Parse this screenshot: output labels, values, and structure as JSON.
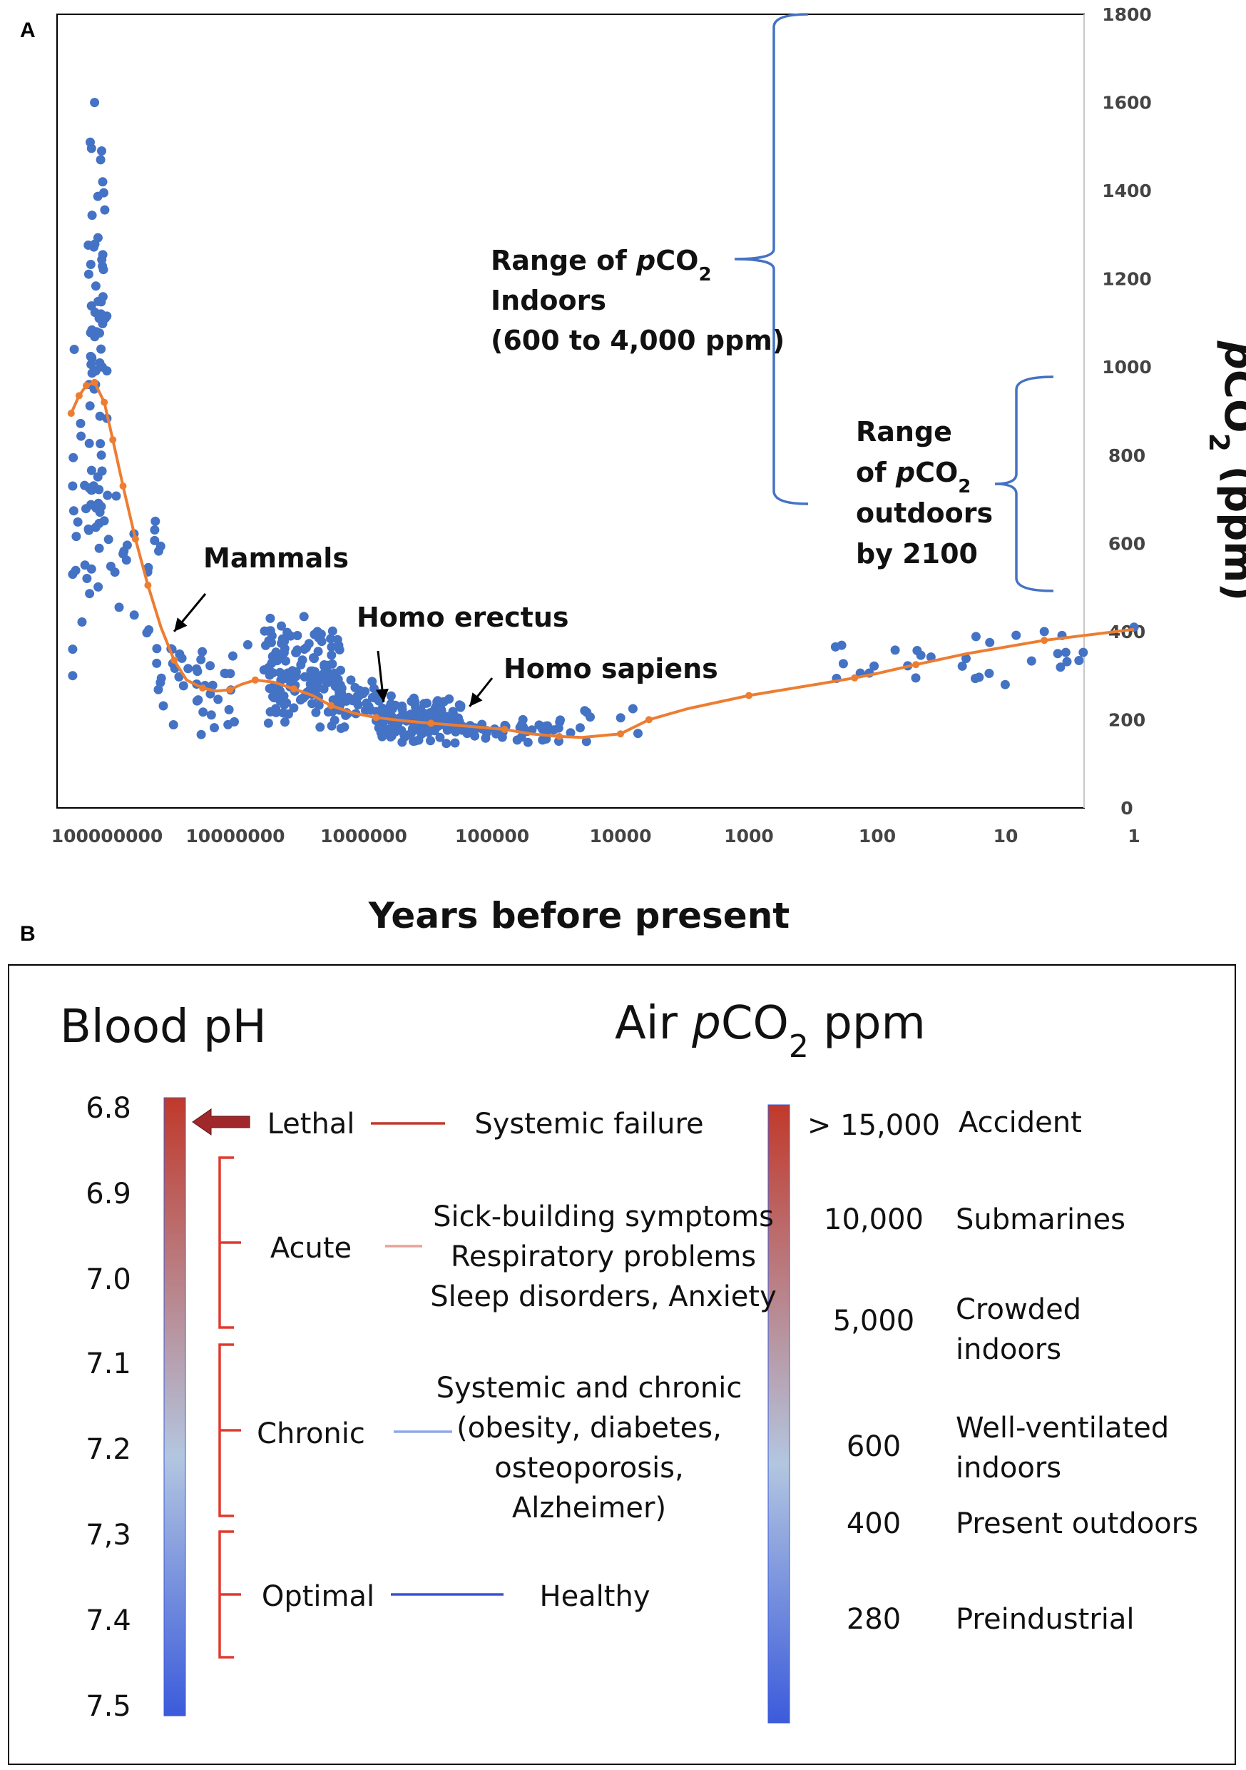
{
  "panel_a": {
    "letter": "A",
    "chart_data": {
      "type": "scatter",
      "title": "",
      "xlabel": "Years before present",
      "ylabel_parts": [
        "p",
        "CO",
        "2",
        " (ppm)"
      ],
      "x_scale": "log-reversed",
      "xlim": [
        200000000,
        1
      ],
      "ylim": [
        0,
        1800
      ],
      "grid": false,
      "x_ticks": [
        100000000,
        10000000,
        1000000,
        100000,
        10000,
        1000,
        100,
        10,
        1
      ],
      "x_tick_labels": [
        "100000000",
        "10000000",
        "1000000",
        "100000",
        "10000",
        "1000",
        "100",
        "10",
        "1"
      ],
      "y_ticks": [
        0,
        200,
        400,
        600,
        800,
        1000,
        1200,
        1400,
        1600,
        1800
      ],
      "y_tick_labels": [
        "0",
        "200",
        "400",
        "600",
        "800",
        "1000",
        "1200",
        "1400",
        "1600",
        "1800"
      ],
      "colors": {
        "scatter": "#4472c4",
        "trend": "#ed7d31",
        "bracket": "#4472c4"
      },
      "trend_line": {
        "x": [
          190000000,
          165000000,
          145000000,
          125000000,
          105000000,
          90000000,
          75000000,
          60000000,
          48000000,
          38000000,
          30000000,
          24000000,
          18000000,
          14000000,
          11000000,
          9000000,
          7000000,
          5000000,
          3500000,
          2500000,
          1800000,
          1200000,
          800000,
          500000,
          300000,
          150000,
          80000,
          50000,
          30000,
          20000,
          10000,
          8000,
          6000,
          3000,
          1000,
          300,
          150,
          100,
          50,
          20,
          5,
          1
        ],
        "y": [
          895,
          935,
          958,
          965,
          920,
          835,
          730,
          610,
          505,
          410,
          335,
          290,
          272,
          265,
          268,
          280,
          290,
          285,
          270,
          255,
          232,
          215,
          205,
          198,
          192,
          185,
          178,
          168,
          162,
          160,
          168,
          182,
          200,
          225,
          255,
          280,
          295,
          305,
          325,
          350,
          380,
          405
        ]
      },
      "scatter_clusters": [
        {
          "x_range": [
            100000000,
            140000000
          ],
          "y_range": [
            600,
            1600
          ],
          "count": 50
        },
        {
          "x_range": [
            100000000,
            150000000
          ],
          "y_range": [
            450,
            900
          ],
          "count": 28
        },
        {
          "x_range": [
            150000000,
            185000000
          ],
          "y_range": [
            300,
            1000
          ],
          "count": 8
        },
        {
          "x_range": [
            38000000,
            100000000
          ],
          "y_range": [
            350,
            800
          ],
          "count": 20
        },
        {
          "x_range": [
            10000000,
            42000000
          ],
          "y_range": [
            150,
            420
          ],
          "count": 40
        },
        {
          "x_range": [
            1500000,
            6000000
          ],
          "y_range": [
            170,
            440
          ],
          "count": 150
        },
        {
          "x_range": [
            700000,
            1600000
          ],
          "y_range": [
            180,
            300
          ],
          "count": 40
        },
        {
          "x_range": [
            170000,
            800000
          ],
          "y_range": [
            140,
            260
          ],
          "count": 150
        },
        {
          "x_range": [
            30000,
            170000
          ],
          "y_range": [
            145,
            210
          ],
          "count": 40
        },
        {
          "x_range": [
            6000,
            30000
          ],
          "y_range": [
            140,
            240
          ],
          "count": 10
        },
        {
          "x_range": [
            2,
            250
          ],
          "y_range": [
            270,
            405
          ],
          "count": 30
        }
      ],
      "scatter_outliers": [
        {
          "x": 125000000,
          "y": 1600
        },
        {
          "x": 110000000,
          "y": 1490
        },
        {
          "x": 108000000,
          "y": 1420
        },
        {
          "x": 112000000,
          "y": 1470
        },
        {
          "x": 135000000,
          "y": 1510
        },
        {
          "x": 180000000,
          "y": 1040
        },
        {
          "x": 185000000,
          "y": 730
        },
        {
          "x": 185000000,
          "y": 530
        },
        {
          "x": 185000000,
          "y": 360
        },
        {
          "x": 185000000,
          "y": 300
        },
        {
          "x": 42000000,
          "y": 650
        },
        {
          "x": 8000000,
          "y": 370
        },
        {
          "x": 5000000,
          "y": 250
        },
        {
          "x": 1,
          "y": 410
        },
        {
          "x": 5,
          "y": 400
        },
        {
          "x": 8000,
          "y": 225
        }
      ],
      "annotations": [
        {
          "text": "Mammals",
          "x": 30000000,
          "y": 400
        },
        {
          "text": "Homo erectus",
          "x": 700000,
          "y": 240
        },
        {
          "text": "Homo sapiens",
          "x": 150000,
          "y": 230
        }
      ],
      "bracket_indoor": {
        "label_lines": [
          [
            "Range of ",
            "p",
            "CO",
            "2"
          ],
          [
            "Indoors"
          ],
          [
            "(600 to 4,000 ppm)"
          ]
        ],
        "range_ppm": [
          600,
          4000
        ]
      },
      "bracket_outdoor": {
        "label_lines": [
          [
            "Range"
          ],
          [
            "of ",
            "p",
            "CO",
            "2"
          ],
          [
            "outdoors"
          ],
          [
            "by 2100"
          ]
        ],
        "range_ppm": [
          500,
          975
        ]
      }
    }
  },
  "panel_b": {
    "letter": "B",
    "left_title": "Blood pH",
    "right_title_parts": [
      "Air ",
      "p",
      "CO",
      "2",
      " ppm"
    ],
    "colors": {
      "scale_top": "#c0392b",
      "scale_mid": "#b3c6e0",
      "scale_bottom": "#3b5bdb",
      "bracket": "#e03a2f",
      "arrow": "#a0282b"
    },
    "ph_labels": [
      "6.8",
      "6.9",
      "7.0",
      "7.1",
      "7.2",
      "7,3",
      "7.4",
      "7.5"
    ],
    "categories": [
      {
        "label": "Lethal",
        "line_color": "#c0392b",
        "effects": [
          "Systemic failure"
        ]
      },
      {
        "label": "Acute",
        "line_color": "#e8a298",
        "effects": [
          "Sick-building symptoms",
          "Respiratory problems",
          "Sleep disorders, Anxiety"
        ]
      },
      {
        "label": "Chronic",
        "line_color": "#8fa8e8",
        "effects": [
          "Systemic and chronic",
          "(obesity, diabetes,",
          "osteoporosis,",
          "Alzheimer)"
        ]
      },
      {
        "label": "Optimal",
        "line_color": "#3d50d8",
        "effects": [
          "Healthy"
        ]
      }
    ],
    "co2_levels": [
      {
        "value": "> 15,000",
        "desc": [
          "Accident"
        ]
      },
      {
        "value": "10,000",
        "desc": [
          "Submarines"
        ]
      },
      {
        "value": "5,000",
        "desc": [
          "Crowded",
          "indoors"
        ]
      },
      {
        "value": "600",
        "desc": [
          "Well-ventilated",
          "indoors"
        ]
      },
      {
        "value": "400",
        "desc": [
          "Present outdoors"
        ]
      },
      {
        "value": "280",
        "desc": [
          "Preindustrial"
        ]
      }
    ]
  }
}
